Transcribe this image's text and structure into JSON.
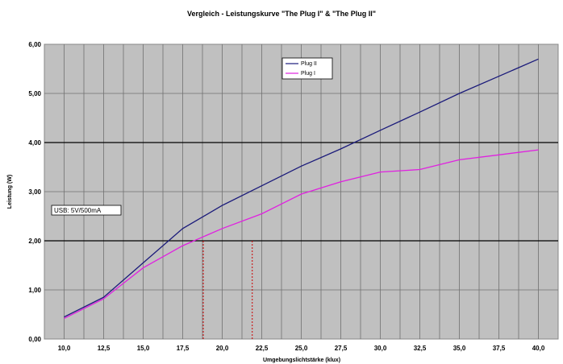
{
  "chart_data": {
    "type": "line",
    "title": "Vergleich - Leistungskurve \"The Plug I\" & \"The Plug II\"",
    "xlabel": "Umgebungslichtstärke (klux)",
    "ylabel": "Leistung (W)",
    "x": [
      10.0,
      12.5,
      15.0,
      17.5,
      20.0,
      22.5,
      25.0,
      27.5,
      30.0,
      32.5,
      35.0,
      37.5,
      40.0
    ],
    "x_tick_labels": [
      "10,0",
      "12,5",
      "15,0",
      "17,5",
      "20,0",
      "22,5",
      "25,0",
      "27,5",
      "30,0",
      "32,5",
      "35,0",
      "37,5",
      "40,0"
    ],
    "y_tick_labels": [
      "0,00",
      "1,00",
      "2,00",
      "3,00",
      "4,00",
      "5,00",
      "6,00"
    ],
    "xlim": [
      8.75,
      41.25
    ],
    "ylim": [
      0,
      6
    ],
    "y_ticks": [
      0,
      1,
      2,
      3,
      4,
      5,
      6
    ],
    "series": [
      {
        "name": "Plug II",
        "color": "#1a1a7a",
        "values": [
          0.45,
          0.85,
          1.55,
          2.25,
          2.72,
          3.12,
          3.52,
          3.87,
          4.25,
          4.62,
          5.0,
          5.35,
          5.7
        ]
      },
      {
        "name": "Plug I",
        "color": "#e020e0",
        "values": [
          0.42,
          0.82,
          1.45,
          1.9,
          2.25,
          2.55,
          2.95,
          3.2,
          3.4,
          3.45,
          3.65,
          3.75,
          3.85
        ]
      }
    ],
    "reference_lines": [
      2.0,
      4.0
    ],
    "vertical_markers": [
      18.8,
      21.9
    ],
    "annotation": "USB: 5V/500mA",
    "grid": true,
    "legend_position": "top-center"
  }
}
